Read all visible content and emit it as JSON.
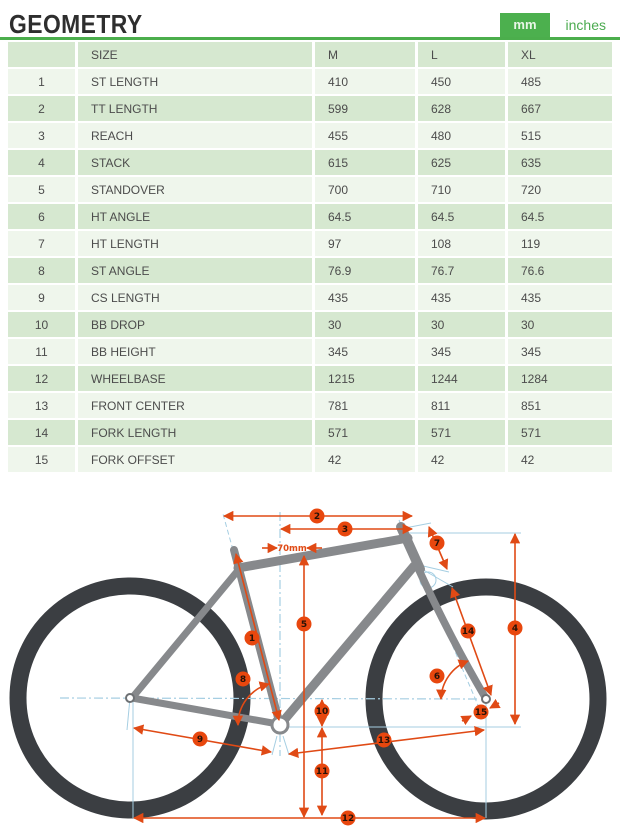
{
  "header": {
    "title": "GEOMETRY",
    "unit_mm": "mm",
    "unit_inches": "inches"
  },
  "table": {
    "columns": [
      "",
      "SIZE",
      "M",
      "L",
      "XL"
    ],
    "rows": [
      {
        "num": "1",
        "label": "ST LENGTH",
        "m": "410",
        "l": "450",
        "xl": "485"
      },
      {
        "num": "2",
        "label": "TT LENGTH",
        "m": "599",
        "l": "628",
        "xl": "667"
      },
      {
        "num": "3",
        "label": "REACH",
        "m": "455",
        "l": "480",
        "xl": "515"
      },
      {
        "num": "4",
        "label": "STACK",
        "m": "615",
        "l": "625",
        "xl": "635"
      },
      {
        "num": "5",
        "label": "STANDOVER",
        "m": "700",
        "l": "710",
        "xl": "720"
      },
      {
        "num": "6",
        "label": "HT ANGLE",
        "m": "64.5",
        "l": "64.5",
        "xl": "64.5"
      },
      {
        "num": "7",
        "label": "HT LENGTH",
        "m": "97",
        "l": "108",
        "xl": "119"
      },
      {
        "num": "8",
        "label": "ST ANGLE",
        "m": "76.9",
        "l": "76.7",
        "xl": "76.6"
      },
      {
        "num": "9",
        "label": "CS LENGTH",
        "m": "435",
        "l": "435",
        "xl": "435"
      },
      {
        "num": "10",
        "label": "BB DROP",
        "m": "30",
        "l": "30",
        "xl": "30"
      },
      {
        "num": "11",
        "label": "BB HEIGHT",
        "m": "345",
        "l": "345",
        "xl": "345"
      },
      {
        "num": "12",
        "label": "WHEELBASE",
        "m": "1215",
        "l": "1244",
        "xl": "1284"
      },
      {
        "num": "13",
        "label": "FRONT CENTER",
        "m": "781",
        "l": "811",
        "xl": "851"
      },
      {
        "num": "14",
        "label": "FORK LENGTH",
        "m": "571",
        "l": "571",
        "xl": "571"
      },
      {
        "num": "15",
        "label": "FORK OFFSET",
        "m": "42",
        "l": "42",
        "xl": "42"
      }
    ]
  },
  "diagram": {
    "badges": [
      "1",
      "2",
      "3",
      "4",
      "5",
      "6",
      "7",
      "8",
      "9",
      "10",
      "11",
      "12",
      "13",
      "14",
      "15"
    ],
    "annotation_70mm": "70mm",
    "colors": {
      "dimension_orange": "#e04a15",
      "badge_orange": "#e8470e",
      "frame_gray": "#87898c",
      "wheel_dark": "#3b3e42",
      "guide_blue": "#a5cee2",
      "accent_green": "#4bae4c",
      "row_green_light": "#eff6ec",
      "row_green_dark": "#d6e8d0"
    }
  }
}
